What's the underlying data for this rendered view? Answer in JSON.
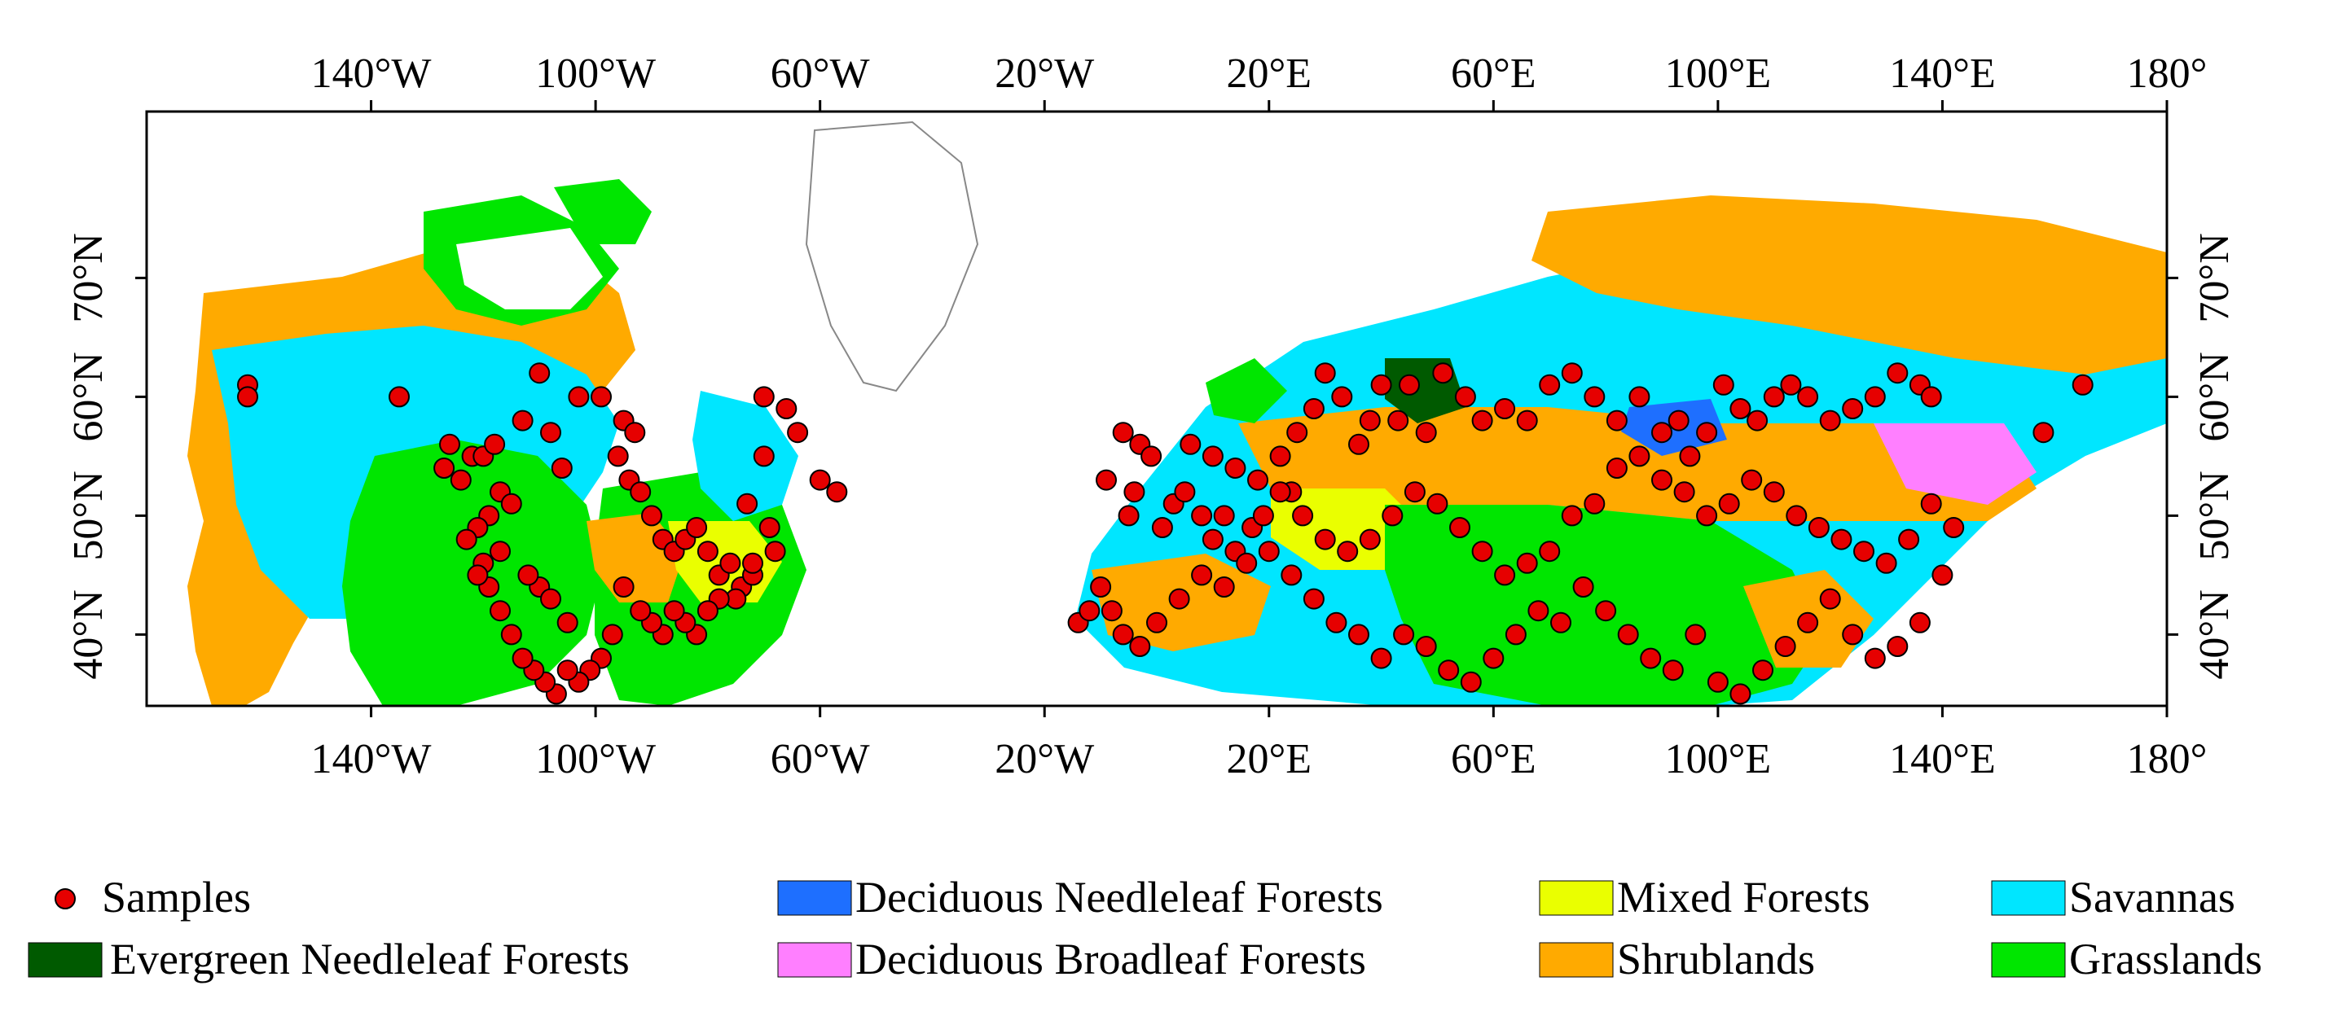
{
  "map": {
    "lon_ticks": [
      "140°W",
      "100°W",
      "60°W",
      "20°W",
      "20°E",
      "60°E",
      "100°E",
      "140°E",
      "180°"
    ],
    "lon_tick_values": [
      -140,
      -100,
      -60,
      -20,
      20,
      60,
      100,
      140,
      180
    ],
    "lat_ticks_left": [
      "40°N",
      "50°N",
      "60°N",
      "70°N"
    ],
    "lat_ticks_right": [
      "40°N",
      "50°N",
      "60°N",
      "70°N"
    ],
    "lat_tick_values": [
      40,
      50,
      60,
      70
    ],
    "extent": {
      "lon_min": -180,
      "lon_max": 180,
      "lat_min": 34,
      "lat_max": 84
    },
    "colors": {
      "samples": "#e60000",
      "evergreen_needleleaf": "#005a00",
      "deciduous_needleleaf": "#1e6fff",
      "deciduous_broadleaf": "#ff7fff",
      "mixed": "#eaff00",
      "shrublands": "#ffaa00",
      "savannas": "#00e6ff",
      "grasslands": "#00e600",
      "coastline": "#888888"
    }
  },
  "legend": {
    "samples": "Samples",
    "evergreen_needleleaf": "Evergreen Needleleaf Forests",
    "deciduous_needleleaf": "Deciduous Needleleaf Forests",
    "deciduous_broadleaf": "Deciduous Broadleaf Forests",
    "mixed": "Mixed Forests",
    "shrublands": "Shrublands",
    "savannas": "Savannas",
    "grasslands": "Grasslands"
  },
  "samples": [
    [
      -162,
      61
    ],
    [
      -162,
      60
    ],
    [
      -135,
      60
    ],
    [
      -126,
      56
    ],
    [
      -127,
      54
    ],
    [
      -124,
      53
    ],
    [
      -122,
      55
    ],
    [
      -120,
      55
    ],
    [
      -118,
      56
    ],
    [
      -117,
      52
    ],
    [
      -119,
      50
    ],
    [
      -121,
      49
    ],
    [
      -123,
      48
    ],
    [
      -120,
      46
    ],
    [
      -117,
      47
    ],
    [
      -115,
      51
    ],
    [
      -113,
      58
    ],
    [
      -110,
      62
    ],
    [
      -108,
      57
    ],
    [
      -106,
      54
    ],
    [
      -103,
      60
    ],
    [
      -99,
      60
    ],
    [
      -95,
      58
    ],
    [
      -93,
      57
    ],
    [
      -96,
      55
    ],
    [
      -94,
      53
    ],
    [
      -92,
      52
    ],
    [
      -90,
      50
    ],
    [
      -88,
      48
    ],
    [
      -86,
      47
    ],
    [
      -84,
      48
    ],
    [
      -82,
      49
    ],
    [
      -80,
      47
    ],
    [
      -78,
      45
    ],
    [
      -76,
      46
    ],
    [
      -74,
      44
    ],
    [
      -72,
      45
    ],
    [
      -75,
      43
    ],
    [
      -78,
      43
    ],
    [
      -80,
      42
    ],
    [
      -82,
      40
    ],
    [
      -84,
      41
    ],
    [
      -86,
      42
    ],
    [
      -88,
      40
    ],
    [
      -90,
      41
    ],
    [
      -92,
      42
    ],
    [
      -95,
      44
    ],
    [
      -97,
      40
    ],
    [
      -99,
      38
    ],
    [
      -101,
      37
    ],
    [
      -103,
      36
    ],
    [
      -105,
      37
    ],
    [
      -107,
      35
    ],
    [
      -109,
      36
    ],
    [
      -111,
      37
    ],
    [
      -113,
      38
    ],
    [
      -115,
      40
    ],
    [
      -117,
      42
    ],
    [
      -119,
      44
    ],
    [
      -121,
      45
    ],
    [
      -110,
      44
    ],
    [
      -108,
      43
    ],
    [
      -105,
      41
    ],
    [
      -112,
      45
    ],
    [
      -70,
      60
    ],
    [
      -66,
      59
    ],
    [
      -64,
      57
    ],
    [
      -60,
      53
    ],
    [
      -57,
      52
    ],
    [
      -70,
      55
    ],
    [
      -73,
      51
    ],
    [
      -69,
      49
    ],
    [
      -72,
      46
    ],
    [
      -68,
      47
    ],
    [
      -9,
      53
    ],
    [
      -6,
      57
    ],
    [
      -3,
      56
    ],
    [
      -1,
      55
    ],
    [
      -4,
      52
    ],
    [
      -5,
      50
    ],
    [
      1,
      49
    ],
    [
      3,
      51
    ],
    [
      5,
      52
    ],
    [
      8,
      50
    ],
    [
      10,
      48
    ],
    [
      12,
      50
    ],
    [
      14,
      47
    ],
    [
      17,
      49
    ],
    [
      19,
      50
    ],
    [
      22,
      55
    ],
    [
      24,
      52
    ],
    [
      25,
      57
    ],
    [
      28,
      59
    ],
    [
      30,
      62
    ],
    [
      33,
      60
    ],
    [
      36,
      56
    ],
    [
      38,
      58
    ],
    [
      40,
      61
    ],
    [
      43,
      58
    ],
    [
      45,
      61
    ],
    [
      48,
      57
    ],
    [
      51,
      62
    ],
    [
      55,
      60
    ],
    [
      58,
      58
    ],
    [
      62,
      59
    ],
    [
      66,
      58
    ],
    [
      70,
      61
    ],
    [
      74,
      62
    ],
    [
      78,
      60
    ],
    [
      82,
      58
    ],
    [
      86,
      60
    ],
    [
      90,
      57
    ],
    [
      93,
      58
    ],
    [
      95,
      55
    ],
    [
      98,
      57
    ],
    [
      101,
      61
    ],
    [
      104,
      59
    ],
    [
      107,
      58
    ],
    [
      110,
      60
    ],
    [
      113,
      61
    ],
    [
      116,
      60
    ],
    [
      120,
      58
    ],
    [
      124,
      59
    ],
    [
      128,
      60
    ],
    [
      132,
      62
    ],
    [
      136,
      61
    ],
    [
      138,
      60
    ],
    [
      165,
      61
    ],
    [
      158,
      57
    ],
    [
      -14,
      41
    ],
    [
      -12,
      42
    ],
    [
      -10,
      44
    ],
    [
      -8,
      42
    ],
    [
      -6,
      40
    ],
    [
      -3,
      39
    ],
    [
      0,
      41
    ],
    [
      4,
      43
    ],
    [
      8,
      45
    ],
    [
      12,
      44
    ],
    [
      16,
      46
    ],
    [
      20,
      47
    ],
    [
      24,
      45
    ],
    [
      28,
      43
    ],
    [
      32,
      41
    ],
    [
      36,
      40
    ],
    [
      40,
      38
    ],
    [
      44,
      40
    ],
    [
      48,
      39
    ],
    [
      52,
      37
    ],
    [
      56,
      36
    ],
    [
      60,
      38
    ],
    [
      64,
      40
    ],
    [
      68,
      42
    ],
    [
      72,
      41
    ],
    [
      76,
      44
    ],
    [
      80,
      42
    ],
    [
      84,
      40
    ],
    [
      88,
      38
    ],
    [
      92,
      37
    ],
    [
      96,
      40
    ],
    [
      100,
      36
    ],
    [
      104,
      35
    ],
    [
      108,
      37
    ],
    [
      112,
      39
    ],
    [
      116,
      41
    ],
    [
      120,
      43
    ],
    [
      124,
      40
    ],
    [
      128,
      38
    ],
    [
      132,
      39
    ],
    [
      136,
      41
    ],
    [
      140,
      45
    ],
    [
      142,
      49
    ],
    [
      138,
      51
    ],
    [
      134,
      48
    ],
    [
      130,
      46
    ],
    [
      126,
      47
    ],
    [
      122,
      48
    ],
    [
      118,
      49
    ],
    [
      114,
      50
    ],
    [
      110,
      52
    ],
    [
      106,
      53
    ],
    [
      102,
      51
    ],
    [
      98,
      50
    ],
    [
      94,
      52
    ],
    [
      90,
      53
    ],
    [
      86,
      55
    ],
    [
      82,
      54
    ],
    [
      78,
      51
    ],
    [
      74,
      50
    ],
    [
      70,
      47
    ],
    [
      66,
      46
    ],
    [
      62,
      45
    ],
    [
      58,
      47
    ],
    [
      54,
      49
    ],
    [
      50,
      51
    ],
    [
      46,
      52
    ],
    [
      42,
      50
    ],
    [
      38,
      48
    ],
    [
      34,
      47
    ],
    [
      30,
      48
    ],
    [
      26,
      50
    ],
    [
      22,
      52
    ],
    [
      18,
      53
    ],
    [
      14,
      54
    ],
    [
      10,
      55
    ],
    [
      6,
      56
    ]
  ]
}
